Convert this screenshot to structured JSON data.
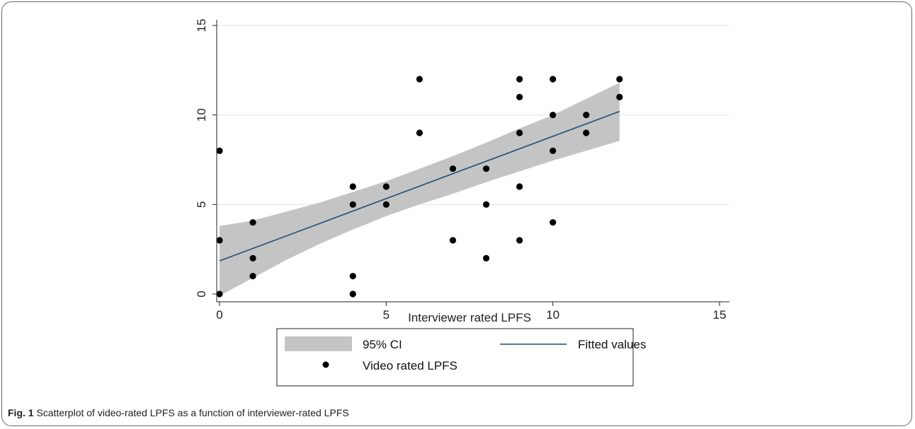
{
  "chart_data": {
    "type": "scatter",
    "xlabel": "Interviewer rated LPFS",
    "ylabel": "",
    "xlim": [
      0,
      15
    ],
    "ylim": [
      0,
      15
    ],
    "xticks": [
      "0",
      "5",
      "10",
      "15"
    ],
    "yticks": [
      "0",
      "5",
      "10",
      "15"
    ],
    "grid": "horizontal",
    "series": [
      {
        "name": "Video rated LPFS",
        "kind": "scatter",
        "color": "#000000",
        "points": [
          [
            0,
            8
          ],
          [
            0,
            3
          ],
          [
            0,
            0
          ],
          [
            1,
            4
          ],
          [
            1,
            2
          ],
          [
            1,
            1
          ],
          [
            4,
            6
          ],
          [
            4,
            5
          ],
          [
            4,
            1
          ],
          [
            4,
            0
          ],
          [
            5,
            6
          ],
          [
            5,
            5
          ],
          [
            6,
            12
          ],
          [
            6,
            9
          ],
          [
            7,
            7
          ],
          [
            7,
            3
          ],
          [
            8,
            7
          ],
          [
            8,
            5
          ],
          [
            8,
            2
          ],
          [
            9,
            12
          ],
          [
            9,
            11
          ],
          [
            9,
            9
          ],
          [
            9,
            6
          ],
          [
            9,
            3
          ],
          [
            10,
            12
          ],
          [
            10,
            10
          ],
          [
            10,
            8
          ],
          [
            10,
            4
          ],
          [
            11,
            10
          ],
          [
            11,
            9
          ],
          [
            12,
            12
          ],
          [
            12,
            11
          ]
        ]
      },
      {
        "name": "Fitted values",
        "kind": "line",
        "color": "#1f4e79",
        "x": [
          0,
          12
        ],
        "y": [
          1.85,
          10.2
        ]
      },
      {
        "name": "95% CI",
        "kind": "band",
        "color": "#c4c4c4",
        "x": [
          0,
          1,
          2,
          3,
          4,
          5,
          6,
          7,
          8,
          9,
          10,
          11,
          12
        ],
        "lower": [
          -0.1,
          0.9,
          1.9,
          2.8,
          3.6,
          4.35,
          5.0,
          5.6,
          6.25,
          6.85,
          7.45,
          8.0,
          8.55
        ],
        "upper": [
          3.8,
          4.1,
          4.6,
          5.1,
          5.7,
          6.3,
          7.0,
          7.7,
          8.45,
          9.25,
          10.0,
          10.9,
          11.8
        ]
      }
    ],
    "legend": {
      "placement": "bottom",
      "entries": [
        "95% CI",
        "Fitted values",
        "Video rated LPFS"
      ]
    }
  },
  "caption": {
    "label": "Fig. 1",
    "text": "Scatterplot of video-rated LPFS as a function of interviewer-rated LPFS"
  }
}
